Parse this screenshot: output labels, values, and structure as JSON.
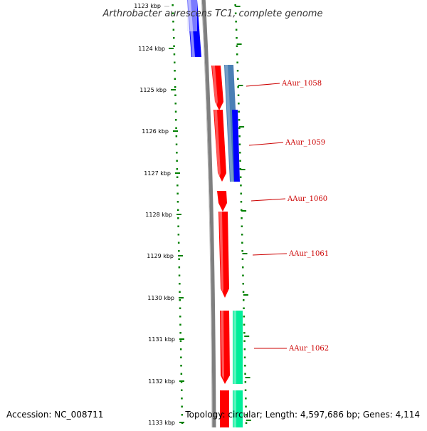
{
  "title": "Arthrobacter aurescens TC1, complete genome",
  "footer": {
    "accession": "Accession: NC_008711",
    "topology": "Topology: circular; Length: 4,597,686 bp; Genes: 4,114"
  },
  "colors": {
    "background": "#ffffff",
    "backbone": "#7f7f7f",
    "tick": "#008000",
    "gene_red": "#ff0000",
    "gene_blue": "#0000ff",
    "gene_steelblue": "#4a7fb5",
    "gene_green": "#00ee99",
    "label_red": "#cc0000"
  },
  "kbp_ticks": [
    "1123 kbp",
    "1124 kbp",
    "1125 kbp",
    "1126 kbp",
    "1127 kbp",
    "1128 kbp",
    "1129 kbp",
    "1130 kbp",
    "1131 kbp",
    "1132 kbp",
    "1133 kbp"
  ],
  "gene_labels": [
    "AAur_1058",
    "AAur_1059",
    "AAur_1060",
    "AAur_1061",
    "AAur_1062"
  ]
}
